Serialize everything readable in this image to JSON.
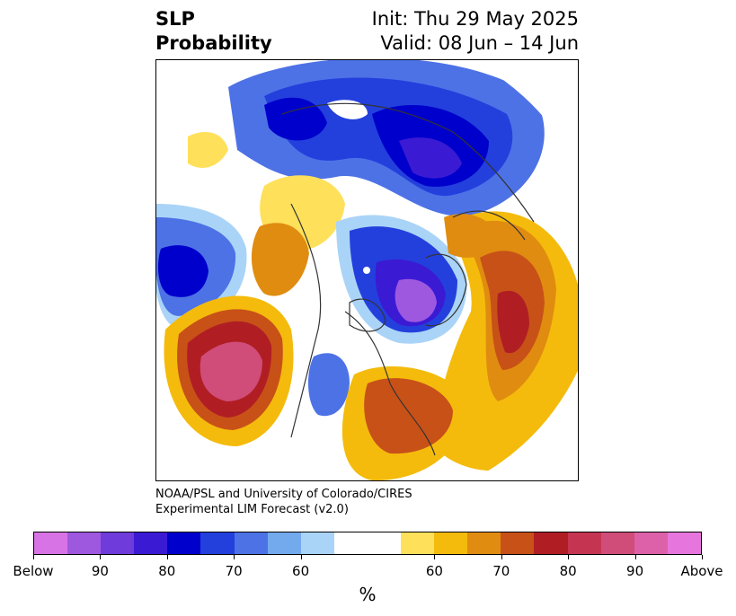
{
  "title": {
    "left_line1": "SLP",
    "left_line2": "Probability",
    "right_line1": "Init: Thu 29 May 2025",
    "right_line2": "Valid: 08 Jun – 14 Jun"
  },
  "credit": {
    "line1": "NOAA/PSL and University of Colorado/CIRES",
    "line2": "Experimental LIM Forecast (v2.0)"
  },
  "colorbar": {
    "colors": [
      "#d873e6",
      "#9e58e0",
      "#6f3bdb",
      "#3b1ad4",
      "#0000cc",
      "#2340dd",
      "#4d72e6",
      "#73aaee",
      "#aad4f7",
      "#ffffff",
      "#ffffff",
      "#ffe05a",
      "#f4bb0c",
      "#e08c10",
      "#c85118",
      "#b01e24",
      "#c53552",
      "#d04d7a",
      "#dd61a8",
      "#e676dd"
    ],
    "labels": [
      "Below",
      "90",
      "80",
      "70",
      "60",
      "60",
      "70",
      "80",
      "90",
      "Above"
    ],
    "unit": "%"
  },
  "map": {
    "projection": "north-polar-stereographic",
    "regions": [
      {
        "label": "low-probability-north-pacific",
        "color": "#0000cc"
      },
      {
        "label": "low-probability-greenland-hudson",
        "color": "#9e58e0"
      },
      {
        "label": "low-probability-siberia-arctic",
        "color": "#0000cc"
      },
      {
        "label": "high-probability-northeast-pacific",
        "color": "#dd61a8"
      },
      {
        "label": "high-probability-north-atlantic",
        "color": "#b01e24"
      },
      {
        "label": "high-probability-eastern-us",
        "color": "#c85118"
      },
      {
        "label": "high-probability-europe",
        "color": "#e08c10"
      }
    ]
  }
}
